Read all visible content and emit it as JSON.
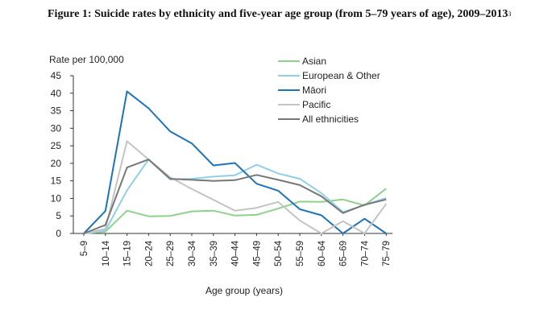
{
  "figure": {
    "title": "Figure 1: Suicide rates by ethnicity and five-year age group (from 5–79 years of age), 2009–2013",
    "title_footnote": "3"
  },
  "chart_data": {
    "type": "line",
    "ylabel": "Rate per 100,000",
    "xlabel": "Age group (years)",
    "ylim": [
      0,
      45
    ],
    "yticks": [
      0,
      5,
      10,
      15,
      20,
      25,
      30,
      35,
      40,
      45
    ],
    "grid": false,
    "legend_position": "top-right",
    "categories": [
      "5–9",
      "10–14",
      "15–19",
      "20–24",
      "25–29",
      "30–34",
      "35–39",
      "40–44",
      "45–49",
      "50–54",
      "55–59",
      "60–64",
      "65–69",
      "70–74",
      "75–79"
    ],
    "series": [
      {
        "name": "Asian",
        "color": "#8dd18d",
        "values": [
          0,
          0.5,
          6.5,
          4.9,
          5.0,
          6.3,
          6.5,
          5.1,
          5.3,
          7.1,
          9.1,
          9.0,
          9.7,
          8.0,
          12.8
        ]
      },
      {
        "name": "European & Other",
        "color": "#8fd0e6",
        "values": [
          0,
          0.8,
          12.3,
          21.1,
          15.4,
          15.6,
          16.2,
          16.6,
          19.6,
          17.1,
          15.6,
          11.5,
          6.1,
          8.1,
          10.1
        ]
      },
      {
        "name": "Māori",
        "color": "#1e73b8",
        "values": [
          0,
          6.4,
          40.5,
          35.7,
          29.1,
          25.7,
          19.4,
          20.1,
          14.2,
          12.2,
          6.9,
          5.2,
          0,
          4.2,
          0
        ]
      },
      {
        "name": "Pacific",
        "color": "#c4c4c4",
        "values": [
          0,
          1.3,
          26.3,
          21.1,
          16.0,
          12.7,
          9.6,
          6.5,
          7.3,
          9.0,
          3.7,
          0,
          3.5,
          0,
          8.4
        ]
      },
      {
        "name": "All ethnicities",
        "color": "#777777",
        "values": [
          0,
          2.4,
          18.8,
          21.1,
          15.6,
          15.3,
          15.0,
          15.2,
          16.7,
          15.3,
          13.8,
          10.6,
          5.8,
          8.2,
          9.7
        ]
      }
    ]
  }
}
